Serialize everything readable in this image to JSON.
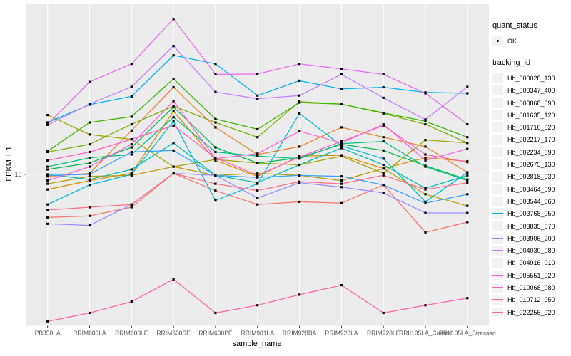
{
  "colors": {
    "panel_background": "#EBEBEB",
    "grid_line": "#FFFFFF",
    "point": "#000000",
    "axis_text": "#4D4D4D",
    "tick_mark": "#333333",
    "legend_key_background": "#F2F2F2"
  },
  "legend": {
    "quant_status": {
      "title": "quant_status",
      "items": [
        {
          "label": "OK",
          "marker": "black-point"
        }
      ]
    },
    "tracking_id": {
      "title": "tracking_id"
    }
  },
  "chart_data": {
    "type": "line",
    "title": "",
    "xlabel": "sample_name",
    "ylabel": "FPKM + 1",
    "y_scale": "log10",
    "ylim": [
      2.2,
      55
    ],
    "y_ticks": [
      {
        "value": 10,
        "label": "10"
      }
    ],
    "grid": "major-only",
    "legend_position": "right",
    "marker": "small-black-square",
    "categories": [
      "PB350LA",
      "RRIM600LA",
      "RRIM600LE",
      "RRIM600SE",
      "RRIM600PE",
      "RRIM901LA",
      "RRIM928BA",
      "RRIM928LA",
      "RRIM928LE",
      "RRII105LA_Control",
      "RRII105LA_Stressed"
    ],
    "series": [
      {
        "name": "Hb_000028_130",
        "color": "#F8766D",
        "values": [
          6.5,
          6.6,
          7.2,
          10.1,
          8.5,
          7.4,
          7.6,
          7.5,
          9.0,
          5.6,
          6.2
        ]
      },
      {
        "name": "Hb_000347_400",
        "color": "#EA8331",
        "values": [
          9.8,
          10.1,
          15.5,
          23.9,
          16.0,
          12.2,
          13.2,
          16.0,
          14.5,
          13.2,
          10.2
        ]
      },
      {
        "name": "Hb_000868_090",
        "color": "#D89000",
        "values": [
          8.6,
          9.4,
          10.1,
          18.8,
          11.5,
          9.8,
          12.0,
          12.1,
          10.6,
          11.8,
          11.4
        ]
      },
      {
        "name": "Hb_001635_120",
        "color": "#C09B00",
        "values": [
          9.1,
          9.8,
          9.9,
          10.8,
          9.9,
          10.1,
          9.9,
          9.4,
          10.6,
          8.2,
          7.3
        ]
      },
      {
        "name": "Hb_001716_020",
        "color": "#A3A500",
        "values": [
          18.1,
          14.9,
          14.2,
          10.8,
          11.6,
          11.2,
          11.0,
          12.0,
          10.1,
          14.1,
          13.7
        ]
      },
      {
        "name": "Hb_002217_170",
        "color": "#7CAE00",
        "values": [
          12.5,
          13.5,
          16.5,
          19.8,
          16.8,
          14.5,
          20.7,
          20.2,
          18.4,
          16.5,
          13.7
        ]
      },
      {
        "name": "Hb_002234_090",
        "color": "#39B600",
        "values": [
          12.6,
          16.8,
          17.8,
          26.0,
          17.4,
          15.7,
          20.5,
          20.2,
          18.5,
          17.0,
          14.5
        ]
      },
      {
        "name": "Hb_002675_130",
        "color": "#00BB4E",
        "values": [
          10.5,
          11.2,
          13.1,
          19.6,
          13.1,
          11.2,
          11.8,
          13.5,
          12.7,
          10.9,
          9.5
        ]
      },
      {
        "name": "Hb_002818_030",
        "color": "#00C087",
        "values": [
          10.8,
          11.8,
          12.2,
          17.7,
          12.5,
          12.0,
          11.7,
          13.6,
          13.9,
          10.8,
          9.4
        ]
      },
      {
        "name": "Hb_003464_090",
        "color": "#00C0B2",
        "values": [
          10.0,
          9.5,
          10.5,
          13.7,
          9.9,
          9.2,
          11.0,
          13.0,
          11.0,
          8.7,
          9.9
        ]
      },
      {
        "name": "Hb_003544_060",
        "color": "#00BCD8",
        "values": [
          7.4,
          9.0,
          10.0,
          17.0,
          7.7,
          9.1,
          18.4,
          13.3,
          11.7,
          7.6,
          10.2
        ]
      },
      {
        "name": "Hb_003768_050",
        "color": "#00B0F6",
        "values": [
          16.8,
          20.1,
          21.8,
          32.9,
          30.2,
          22.0,
          25.5,
          23.5,
          23.9,
          22.7,
          22.5
        ]
      },
      {
        "name": "Hb_003835_070",
        "color": "#35A2FF",
        "values": [
          9.9,
          10.0,
          12.5,
          12.7,
          9.9,
          9.7,
          9.9,
          9.8,
          9.0,
          7.5,
          8.2
        ]
      },
      {
        "name": "Hb_003906_200",
        "color": "#9590FF",
        "values": [
          6.1,
          6.0,
          7.4,
          10.1,
          9.9,
          7.9,
          9.2,
          8.8,
          8.3,
          6.8,
          6.8
        ]
      },
      {
        "name": "Hb_004030_080",
        "color": "#C77CFF",
        "values": [
          16.4,
          20.2,
          24.0,
          36.1,
          22.8,
          21.3,
          22.0,
          27.2,
          21.5,
          17.3,
          24.0
        ]
      },
      {
        "name": "Hb_004916_010",
        "color": "#E76BF3",
        "values": [
          16.5,
          25.2,
          30.2,
          47.3,
          27.2,
          27.3,
          30.2,
          28.7,
          27.2,
          22.5,
          16.5
        ]
      },
      {
        "name": "Hb_005551_020",
        "color": "#FA62DB",
        "values": [
          9.4,
          10.8,
          13.5,
          20.8,
          11.7,
          12.3,
          15.4,
          13.7,
          16.5,
          11.5,
          12.9
        ]
      },
      {
        "name": "Hb_010068_080",
        "color": "#FF61C3",
        "values": [
          11.5,
          12.5,
          14.2,
          16.3,
          11.8,
          9.9,
          11.9,
          13.9,
          16.3,
          12.2,
          11.3
        ]
      },
      {
        "name": "Hb_010712_050",
        "color": "#FF67A4",
        "values": [
          2.3,
          2.5,
          2.8,
          3.5,
          2.5,
          2.7,
          3.0,
          3.3,
          2.5,
          2.7,
          2.9
        ]
      },
      {
        "name": "Hb_022256_020",
        "color": "#FD6F88",
        "values": [
          7.0,
          7.2,
          7.4,
          10.1,
          9.1,
          8.5,
          9.3,
          9.1,
          9.9,
          8.6,
          9.2
        ]
      }
    ]
  }
}
